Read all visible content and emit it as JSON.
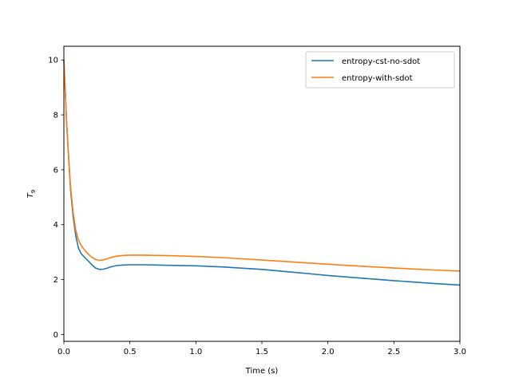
{
  "chart_data": {
    "type": "line",
    "title": "",
    "xlabel": "Time (s)",
    "ylabel_base": "T",
    "ylabel_sub": "9",
    "xlim": [
      0,
      3.0
    ],
    "ylim": [
      -0.25,
      10.5
    ],
    "x_ticks": [
      0.0,
      0.5,
      1.0,
      1.5,
      2.0,
      2.5,
      3.0
    ],
    "x_tick_labels": [
      "0.0",
      "0.5",
      "1.0",
      "1.5",
      "2.0",
      "2.5",
      "3.0"
    ],
    "y_ticks": [
      0,
      2,
      4,
      6,
      8,
      10
    ],
    "y_tick_labels": [
      "0",
      "2",
      "4",
      "6",
      "8",
      "10"
    ],
    "grid": false,
    "legend_position": "top-right",
    "series": [
      {
        "name": "entropy-cst-no-sdot",
        "color": "#1f77b4",
        "x": [
          0.0,
          0.01,
          0.02,
          0.03,
          0.05,
          0.07,
          0.09,
          0.11,
          0.13,
          0.15,
          0.18,
          0.21,
          0.24,
          0.27,
          0.3,
          0.33,
          0.36,
          0.4,
          0.45,
          0.5,
          0.6,
          0.7,
          0.8,
          1.0,
          1.2,
          1.5,
          1.8,
          2.0,
          2.2,
          2.5,
          2.8,
          3.0
        ],
        "y": [
          10.0,
          8.9,
          7.8,
          6.9,
          5.3,
          4.3,
          3.6,
          3.15,
          2.95,
          2.85,
          2.7,
          2.55,
          2.42,
          2.37,
          2.38,
          2.42,
          2.47,
          2.51,
          2.53,
          2.54,
          2.54,
          2.53,
          2.52,
          2.5,
          2.46,
          2.37,
          2.24,
          2.15,
          2.07,
          1.96,
          1.86,
          1.8
        ]
      },
      {
        "name": "entropy-with-sdot",
        "color": "#ff7f0e",
        "x": [
          0.0,
          0.01,
          0.02,
          0.03,
          0.05,
          0.07,
          0.09,
          0.11,
          0.13,
          0.15,
          0.18,
          0.21,
          0.24,
          0.27,
          0.3,
          0.33,
          0.36,
          0.4,
          0.45,
          0.5,
          0.6,
          0.7,
          0.8,
          1.0,
          1.2,
          1.5,
          1.8,
          2.0,
          2.2,
          2.5,
          2.8,
          3.0
        ],
        "y": [
          10.0,
          8.9,
          7.8,
          6.95,
          5.4,
          4.45,
          3.8,
          3.45,
          3.25,
          3.12,
          2.95,
          2.82,
          2.73,
          2.7,
          2.72,
          2.76,
          2.81,
          2.85,
          2.88,
          2.89,
          2.89,
          2.88,
          2.87,
          2.84,
          2.8,
          2.71,
          2.62,
          2.56,
          2.5,
          2.42,
          2.35,
          2.31
        ]
      }
    ]
  }
}
